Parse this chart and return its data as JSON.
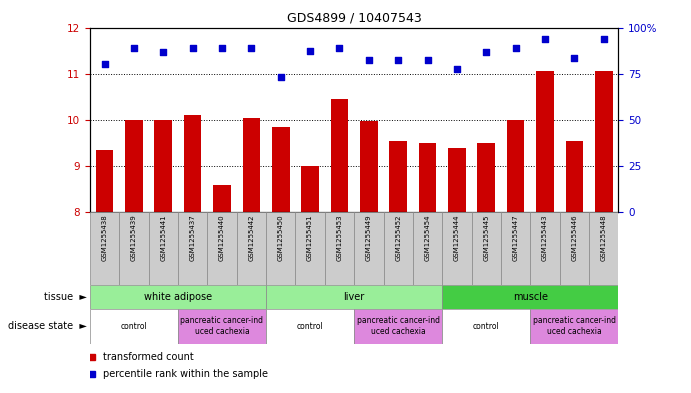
{
  "title": "GDS4899 / 10407543",
  "samples": [
    "GSM1255438",
    "GSM1255439",
    "GSM1255441",
    "GSM1255437",
    "GSM1255440",
    "GSM1255442",
    "GSM1255450",
    "GSM1255451",
    "GSM1255453",
    "GSM1255449",
    "GSM1255452",
    "GSM1255454",
    "GSM1255444",
    "GSM1255445",
    "GSM1255447",
    "GSM1255443",
    "GSM1255446",
    "GSM1255448"
  ],
  "bar_values": [
    9.35,
    10.0,
    10.0,
    10.1,
    8.6,
    10.05,
    9.85,
    9.0,
    10.45,
    9.98,
    9.55,
    9.5,
    9.4,
    9.5,
    10.0,
    11.05,
    9.55,
    11.05
  ],
  "dot_values": [
    11.2,
    11.55,
    11.48,
    11.55,
    11.55,
    11.55,
    10.93,
    11.5,
    11.55,
    11.3,
    11.3,
    11.3,
    11.1,
    11.48,
    11.55,
    11.75,
    11.35,
    11.75
  ],
  "ylim_left": [
    8,
    12
  ],
  "ylim_right": [
    0,
    100
  ],
  "yticks_left": [
    8,
    9,
    10,
    11,
    12
  ],
  "yticks_right": [
    0,
    25,
    50,
    75,
    100
  ],
  "bar_color": "#cc0000",
  "dot_color": "#0000cc",
  "bar_bottom": 8,
  "tissue_groups": [
    {
      "label": "white adipose",
      "start": 0,
      "end": 6,
      "color": "#99ee99"
    },
    {
      "label": "liver",
      "start": 6,
      "end": 12,
      "color": "#99ee99"
    },
    {
      "label": "muscle",
      "start": 12,
      "end": 18,
      "color": "#44cc44"
    }
  ],
  "disease_groups": [
    {
      "label": "control",
      "start": 0,
      "end": 3,
      "color": "#ffffff"
    },
    {
      "label": "pancreatic cancer-ind\nuced cachexia",
      "start": 3,
      "end": 6,
      "color": "#dd88dd"
    },
    {
      "label": "control",
      "start": 6,
      "end": 9,
      "color": "#ffffff"
    },
    {
      "label": "pancreatic cancer-ind\nuced cachexia",
      "start": 9,
      "end": 12,
      "color": "#dd88dd"
    },
    {
      "label": "control",
      "start": 12,
      "end": 15,
      "color": "#ffffff"
    },
    {
      "label": "pancreatic cancer-ind\nuced cachexia",
      "start": 15,
      "end": 18,
      "color": "#dd88dd"
    }
  ],
  "tissue_label": "tissue",
  "disease_label": "disease state",
  "legend_items": [
    {
      "color": "#cc0000",
      "label": "transformed count"
    },
    {
      "color": "#0000cc",
      "label": "percentile rank within the sample"
    }
  ],
  "right_yaxis_color": "#0000cc",
  "left_yaxis_color": "#cc0000",
  "sample_bg_color": "#cccccc",
  "sample_border_color": "#888888"
}
